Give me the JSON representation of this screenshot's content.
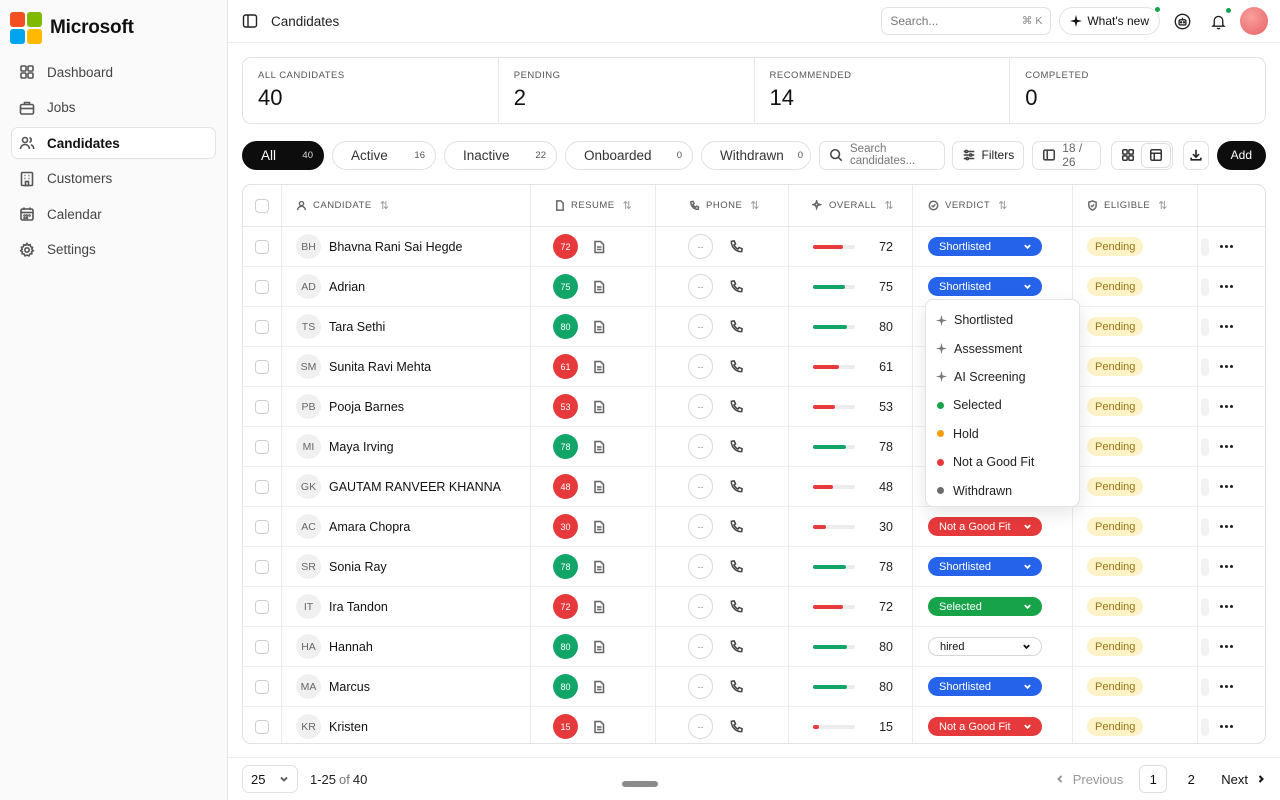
{
  "brand": {
    "name": "Microsoft",
    "logo_colors": [
      "#f25022",
      "#7fba00",
      "#00a4ef",
      "#ffb900"
    ]
  },
  "sidebar": {
    "items": [
      {
        "label": "Dashboard",
        "icon": "grid-icon"
      },
      {
        "label": "Jobs",
        "icon": "briefcase-icon"
      },
      {
        "label": "Candidates",
        "icon": "users-icon",
        "active": true
      },
      {
        "label": "Customers",
        "icon": "building-icon"
      },
      {
        "label": "Calendar",
        "icon": "calendar-icon"
      },
      {
        "label": "Settings",
        "icon": "gear-icon"
      }
    ]
  },
  "header": {
    "title": "Candidates",
    "search_placeholder": "Search...",
    "search_shortcut": "⌘ K",
    "whats_new": "What's new"
  },
  "stats": [
    {
      "label": "ALL CANDIDATES",
      "value": "40"
    },
    {
      "label": "PENDING",
      "value": "2"
    },
    {
      "label": "RECOMMENDED",
      "value": "14"
    },
    {
      "label": "COMPLETED",
      "value": "0"
    }
  ],
  "filters": {
    "tabs": [
      {
        "label": "All",
        "count": "40",
        "active": true
      },
      {
        "label": "Active",
        "count": "16"
      },
      {
        "label": "Inactive",
        "count": "22"
      },
      {
        "label": "Onboarded",
        "count": "0"
      },
      {
        "label": "Withdrawn",
        "count": "0"
      }
    ],
    "search_placeholder": "Search candidates...",
    "filters_label": "Filters",
    "columns_label": "18 / 26",
    "add_label": "Add"
  },
  "table": {
    "columns": [
      "CANDIDATE",
      "RESUME",
      "PHONE",
      "OVERALL",
      "VERDICT",
      "ELIGIBLE"
    ],
    "rows": [
      {
        "initials": "BH",
        "name": "Bhavna Rani Sai Hegde",
        "score": "72",
        "score_color": "#e5393b",
        "phone": "--",
        "overall": 72,
        "overall_color": "#e5393b",
        "verdict": "Shortlisted",
        "verdict_color": "#2563eb",
        "eligible": "Pending"
      },
      {
        "initials": "AD",
        "name": "Adrian",
        "score": "75",
        "score_color": "#12a56a",
        "phone": "--",
        "overall": 75,
        "overall_color": "#12a56a",
        "verdict": "Shortlisted",
        "verdict_color": "#2563eb",
        "eligible": "Pending"
      },
      {
        "initials": "TS",
        "name": "Tara Sethi",
        "score": "80",
        "score_color": "#12a56a",
        "phone": "--",
        "overall": 80,
        "overall_color": "#12a56a",
        "verdict": "",
        "verdict_color": "",
        "eligible": "Pending"
      },
      {
        "initials": "SM",
        "name": "Sunita Ravi Mehta",
        "score": "61",
        "score_color": "#e5393b",
        "phone": "--",
        "overall": 61,
        "overall_color": "#e5393b",
        "verdict": "",
        "verdict_color": "",
        "eligible": "Pending"
      },
      {
        "initials": "PB",
        "name": "Pooja Barnes",
        "score": "53",
        "score_color": "#e5393b",
        "phone": "--",
        "overall": 53,
        "overall_color": "#e5393b",
        "verdict": "",
        "verdict_color": "",
        "eligible": "Pending"
      },
      {
        "initials": "MI",
        "name": "Maya Irving",
        "score": "78",
        "score_color": "#12a56a",
        "phone": "--",
        "overall": 78,
        "overall_color": "#12a56a",
        "verdict": "",
        "verdict_color": "",
        "eligible": "Pending"
      },
      {
        "initials": "GK",
        "name": "GAUTAM RANVEER KHANNA",
        "score": "48",
        "score_color": "#e5393b",
        "phone": "--",
        "overall": 48,
        "overall_color": "#e5393b",
        "verdict": "",
        "verdict_color": "",
        "eligible": "Pending"
      },
      {
        "initials": "AC",
        "name": "Amara Chopra",
        "score": "30",
        "score_color": "#e5393b",
        "phone": "--",
        "overall": 30,
        "overall_color": "#e5393b",
        "verdict": "Not a Good Fit",
        "verdict_color": "#e5393b",
        "eligible": "Pending"
      },
      {
        "initials": "SR",
        "name": "Sonia Ray",
        "score": "78",
        "score_color": "#12a56a",
        "phone": "--",
        "overall": 78,
        "overall_color": "#12a56a",
        "verdict": "Shortlisted",
        "verdict_color": "#2563eb",
        "eligible": "Pending"
      },
      {
        "initials": "IT",
        "name": "Ira Tandon",
        "score": "72",
        "score_color": "#e5393b",
        "phone": "--",
        "overall": 72,
        "overall_color": "#e5393b",
        "verdict": "Selected",
        "verdict_color": "#16a34a",
        "eligible": "Pending"
      },
      {
        "initials": "HA",
        "name": "Hannah",
        "score": "80",
        "score_color": "#12a56a",
        "phone": "--",
        "overall": 80,
        "overall_color": "#12a56a",
        "verdict": "hired",
        "verdict_color": "outline",
        "eligible": "Pending"
      },
      {
        "initials": "MA",
        "name": "Marcus",
        "score": "80",
        "score_color": "#12a56a",
        "phone": "--",
        "overall": 80,
        "overall_color": "#12a56a",
        "verdict": "Shortlisted",
        "verdict_color": "#2563eb",
        "eligible": "Pending"
      },
      {
        "initials": "KR",
        "name": "Kristen",
        "score": "15",
        "score_color": "#e5393b",
        "phone": "--",
        "overall": 15,
        "overall_color": "#e5393b",
        "verdict": "Not a Good Fit",
        "verdict_color": "#e5393b",
        "eligible": "Pending"
      }
    ]
  },
  "verdict_menu": {
    "items": [
      {
        "label": "Shortlisted",
        "marker": "sparkle-icon"
      },
      {
        "label": "Assessment",
        "marker": "sparkle-icon"
      },
      {
        "label": "AI Screening",
        "marker": "sparkle-icon"
      },
      {
        "label": "Selected",
        "marker": "dot",
        "color": "#16a34a"
      },
      {
        "label": "Hold",
        "marker": "dot",
        "color": "#f59e0b"
      },
      {
        "label": "Not a Good Fit",
        "marker": "dot",
        "color": "#e5393b"
      },
      {
        "label": "Withdrawn",
        "marker": "dot",
        "color": "#6b6b6b"
      }
    ]
  },
  "footer": {
    "page_size": "25",
    "range": "1-25",
    "of": "of",
    "total": "40",
    "prev": "Previous",
    "pages": [
      "1",
      "2"
    ],
    "next": "Next"
  }
}
